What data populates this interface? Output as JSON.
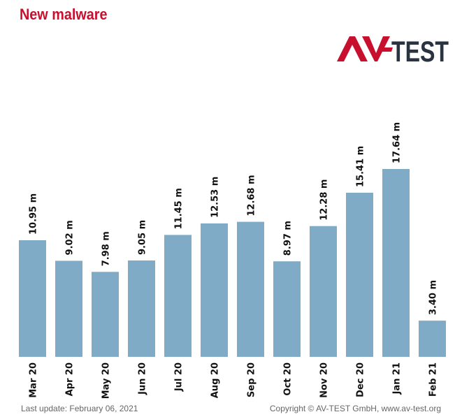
{
  "title": "New malware",
  "logo": {
    "text_av": "AV",
    "text_test": "TEST",
    "color_red": "#c8102e",
    "color_dark": "#2a3340"
  },
  "footer": {
    "left": "Last update: February 06, 2021",
    "right": "Copyright © AV-TEST GmbH, www.av-test.org"
  },
  "colors": {
    "bar": "#7fabc6"
  },
  "chart_data": {
    "type": "bar",
    "title": "New malware",
    "categories": [
      "Mar 20",
      "Apr 20",
      "May 20",
      "Jun 20",
      "Jul 20",
      "Aug 20",
      "Sep 20",
      "Oct 20",
      "Nov 20",
      "Dec 20",
      "Jan 21",
      "Feb 21"
    ],
    "values": [
      10.95,
      9.02,
      7.98,
      9.05,
      11.45,
      12.53,
      12.68,
      8.97,
      12.28,
      15.41,
      17.64,
      3.4
    ],
    "value_labels": [
      "10.95 m",
      "9.02 m",
      "7.98 m",
      "9.05 m",
      "11.45 m",
      "12.53 m",
      "12.68 m",
      "8.97 m",
      "12.28 m",
      "15.41 m",
      "17.64 m",
      "3.40 m"
    ],
    "unit": "m",
    "xlabel": "",
    "ylabel": "",
    "ylim": [
      0,
      17.64
    ],
    "grid": false,
    "legend": "none"
  }
}
